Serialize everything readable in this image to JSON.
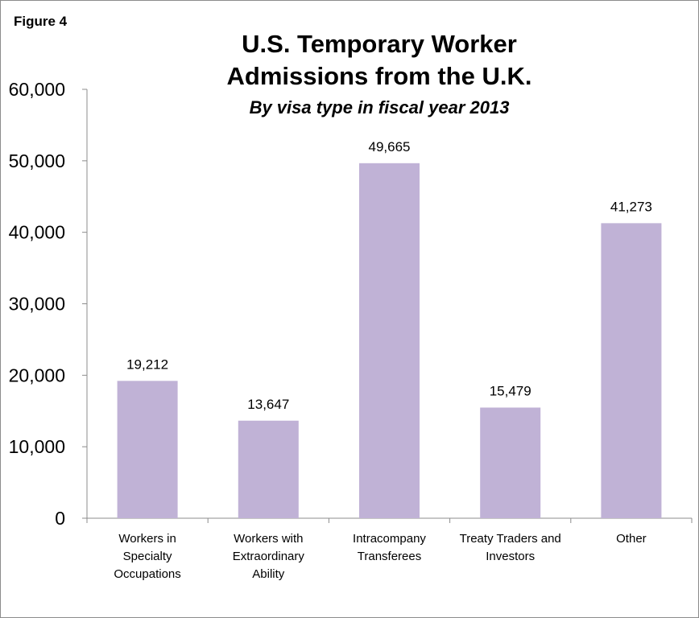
{
  "figure_label": "Figure 4",
  "chart_data": {
    "type": "bar",
    "title": "U.S. Temporary  Worker Admissions from the U.K.",
    "title_lines": [
      "U.S. Temporary  Worker",
      "Admissions from the U.K."
    ],
    "subtitle": "By visa type in fiscal year 2013",
    "categories": [
      [
        "Workers in",
        "Specialty",
        "Occupations"
      ],
      [
        "Workers with",
        "Extraordinary",
        "Ability"
      ],
      [
        "Intracompany",
        "Transferees"
      ],
      [
        "Treaty Traders and",
        "Investors"
      ],
      [
        "Other"
      ]
    ],
    "values": [
      19212,
      13647,
      49665,
      15479,
      41273
    ],
    "data_labels": [
      "19,212",
      "13,647",
      "49,665",
      "15,479",
      "41,273"
    ],
    "yticks": [
      "0",
      "10,000",
      "20,000",
      "30,000",
      "40,000",
      "50,000",
      "60,000"
    ],
    "ylim": [
      0,
      60000
    ],
    "grid": false,
    "legend": "none",
    "bar_color": "#c0b2d6"
  }
}
